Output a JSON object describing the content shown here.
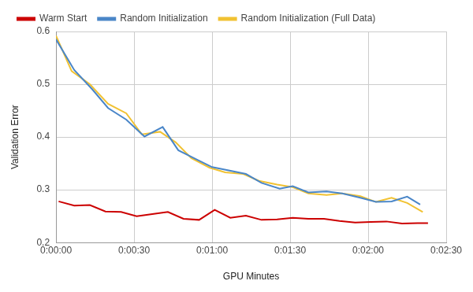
{
  "chart_data": {
    "type": "line",
    "x_label": "GPU Minutes",
    "y_label": "Validation Error",
    "xlim": [
      0,
      150
    ],
    "xticks": [
      {
        "value": 0,
        "label": "0:00:00"
      },
      {
        "value": 30,
        "label": "0:00:30"
      },
      {
        "value": 60,
        "label": "0:01:00"
      },
      {
        "value": 90,
        "label": "0:01:30"
      },
      {
        "value": 120,
        "label": "0:02:00"
      },
      {
        "value": 150,
        "label": "0:02:30"
      }
    ],
    "ylim": [
      0.2,
      0.6
    ],
    "yticks": [
      0.2,
      0.3,
      0.4,
      0.5,
      0.6
    ],
    "grid": true,
    "legend": "top-left",
    "marker": "none",
    "series": [
      {
        "name": "Warm Start",
        "color": "#cc0000",
        "x": [
          1,
          7,
          13,
          19,
          25,
          31,
          37,
          43,
          49,
          55,
          61,
          67,
          73,
          79,
          85,
          91,
          97,
          103,
          109,
          115,
          121,
          127,
          133,
          139,
          143
        ],
        "values": [
          0.278,
          0.27,
          0.271,
          0.259,
          0.258,
          0.25,
          0.254,
          0.258,
          0.245,
          0.243,
          0.262,
          0.247,
          0.251,
          0.243,
          0.244,
          0.247,
          0.245,
          0.245,
          0.241,
          0.238,
          0.239,
          0.24,
          0.236,
          0.237,
          0.237
        ]
      },
      {
        "name": "Random Initialization",
        "color": "#4a86c8",
        "x": [
          0,
          7,
          14,
          20,
          27,
          34,
          41,
          47,
          53,
          60,
          66,
          73,
          79,
          86,
          91,
          97,
          104,
          110,
          117,
          123,
          129,
          135,
          140
        ],
        "values": [
          0.585,
          0.527,
          0.49,
          0.455,
          0.433,
          0.401,
          0.419,
          0.375,
          0.36,
          0.343,
          0.337,
          0.33,
          0.313,
          0.302,
          0.307,
          0.295,
          0.297,
          0.293,
          0.285,
          0.277,
          0.278,
          0.287,
          0.272
        ]
      },
      {
        "name": "Random Initialization (Full Data)",
        "color": "#f1c232",
        "x": [
          0,
          6,
          13,
          20,
          27,
          33,
          40,
          46,
          52,
          59,
          65,
          72,
          78,
          85,
          91,
          97,
          104,
          110,
          117,
          123,
          129,
          135,
          141
        ],
        "values": [
          0.592,
          0.525,
          0.5,
          0.463,
          0.445,
          0.405,
          0.41,
          0.39,
          0.36,
          0.342,
          0.333,
          0.33,
          0.317,
          0.31,
          0.305,
          0.293,
          0.29,
          0.293,
          0.288,
          0.277,
          0.285,
          0.275,
          0.258
        ]
      }
    ]
  }
}
